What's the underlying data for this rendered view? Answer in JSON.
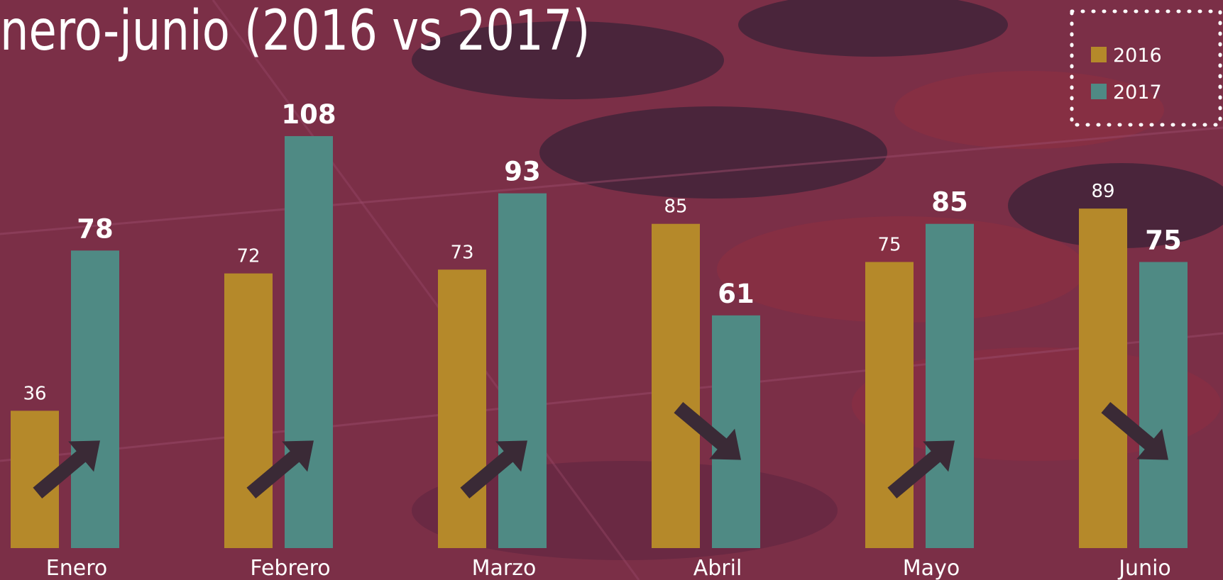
{
  "chart_data": {
    "type": "bar",
    "title": "nero-junio (2016 vs 2017)",
    "categories": [
      "Enero",
      "Febrero",
      "Marzo",
      "Abril",
      "Mayo",
      "Junio"
    ],
    "series": [
      {
        "name": "2016",
        "color": "#b5892a",
        "values": [
          36,
          72,
          73,
          85,
          75,
          89
        ]
      },
      {
        "name": "2017",
        "color": "#4f8a84",
        "values": [
          78,
          108,
          93,
          61,
          85,
          75
        ]
      }
    ]
  }
}
